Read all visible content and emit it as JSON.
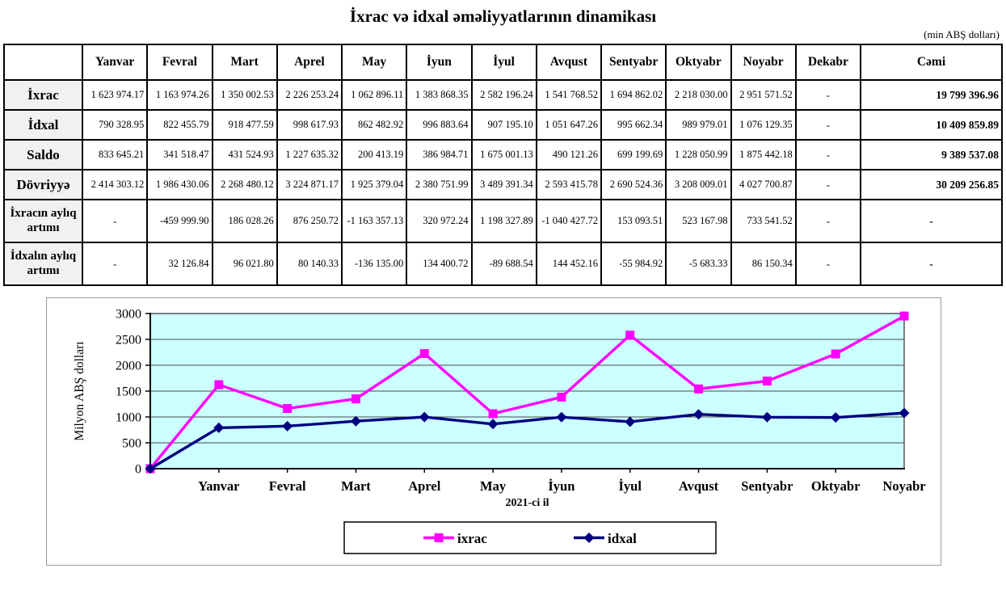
{
  "page": {
    "title": "İxrac və idxal əməliyyatlarının dinamikası",
    "unit_note": "(min ABŞ dolları)"
  },
  "table": {
    "columns": [
      "",
      "Yanvar",
      "Fevral",
      "Mart",
      "Aprel",
      "May",
      "İyun",
      "İyul",
      "Avqust",
      "Sentyabr",
      "Oktyabr",
      "Noyabr",
      "Dekabr",
      "Cəmi"
    ],
    "rows": [
      {
        "label": "İxrac",
        "values": [
          "1 623 974.17",
          "1 163 974.26",
          "1 350 002.53",
          "2 226 253.24",
          "1 062 896.11",
          "1 383 868.35",
          "2 582 196.24",
          "1 541 768.52",
          "1 694 862.02",
          "2 218 030.00",
          "2 951 571.52",
          "-",
          "19 799 396.96"
        ]
      },
      {
        "label": "İdxal",
        "values": [
          "790 328.95",
          "822 455.79",
          "918 477.59",
          "998 617.93",
          "862 482.92",
          "996 883.64",
          "907 195.10",
          "1 051 647.26",
          "995 662.34",
          "989 979.01",
          "1 076 129.35",
          "-",
          "10 409 859.89"
        ]
      },
      {
        "label": "Saldo",
        "values": [
          "833 645.21",
          "341 518.47",
          "431 524.93",
          "1 227 635.32",
          "200 413.19",
          "386 984.71",
          "1 675 001.13",
          "490 121.26",
          "699 199.69",
          "1 228 050.99",
          "1 875 442.18",
          "-",
          "9 389 537.08"
        ]
      },
      {
        "label": "Dövriyyə",
        "values": [
          "2 414 303.12",
          "1 986 430.06",
          "2 268 480.12",
          "3 224 871.17",
          "1 925 379.04",
          "2 380 751.99",
          "3 489 391.34",
          "2 593 415.78",
          "2 690 524.36",
          "3 208 009.01",
          "4 027 700.87",
          "-",
          "30 209 256.85"
        ]
      },
      {
        "label": "İxracın aylıq artımı",
        "values": [
          "-",
          "-459 999.90",
          "186 028.26",
          "876 250.72",
          "-1 163 357.13",
          "320 972.24",
          "1 198 327.89",
          "-1 040 427.72",
          "153 093.51",
          "523 167.98",
          "733 541.52",
          "-",
          "-"
        ]
      },
      {
        "label": "İdxalın aylıq artımı",
        "values": [
          "-",
          "32 126.84",
          "96 021.80",
          "80 140.33",
          "-136 135.00",
          "134 400.72",
          "-89 688.54",
          "144 452.16",
          "-55 984.92",
          "-5 683.33",
          "86 150.34",
          "-",
          "-"
        ]
      }
    ]
  },
  "chart_data": {
    "type": "line",
    "x": [
      "",
      "Yanvar",
      "Fevral",
      "Mart",
      "Aprel",
      "May",
      "İyun",
      "İyul",
      "Avqust",
      "Sentyabr",
      "Oktyabr",
      "Noyabr"
    ],
    "series": [
      {
        "name": "ixrac",
        "color": "#FF00FF",
        "marker": "square",
        "values": [
          0,
          1623.97,
          1163.97,
          1350.0,
          2226.25,
          1062.9,
          1383.87,
          2582.2,
          1541.77,
          1694.86,
          2218.03,
          2951.57
        ]
      },
      {
        "name": "idxal",
        "color": "#000080",
        "marker": "diamond",
        "values": [
          0,
          790.33,
          822.46,
          918.48,
          998.62,
          862.48,
          996.88,
          907.2,
          1051.65,
          995.66,
          989.98,
          1076.13
        ]
      }
    ],
    "title": "",
    "xlabel": "2021-ci il",
    "ylabel": "Milyon ABŞ dolları",
    "ylim": [
      0,
      3000
    ],
    "yticks": [
      0,
      500,
      1000,
      1500,
      2000,
      2500,
      3000
    ],
    "plot_bg": "#CCFFFF",
    "grid": "horizontal",
    "legend_position": "bottom"
  }
}
